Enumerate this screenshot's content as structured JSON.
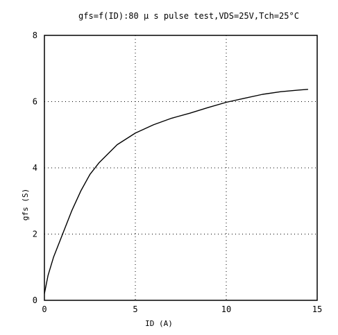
{
  "chart_data": {
    "type": "line",
    "title": "gfs=f(ID):80 μ s pulse test,VDS=25V,Tch=25°C",
    "xlabel": "ID (A)",
    "ylabel": "gfs (S)",
    "xlim": [
      0,
      15
    ],
    "ylim": [
      0,
      8
    ],
    "xticks": [
      "0",
      "5",
      "10",
      "15"
    ],
    "yticks": [
      "0",
      "2",
      "4",
      "6",
      "8"
    ],
    "grid": true,
    "series": [
      {
        "color": "#000000",
        "x": [
          0,
          0.2,
          0.5,
          1.0,
          1.5,
          2.0,
          2.5,
          3.0,
          4.0,
          5.0,
          6.0,
          7.0,
          8.0,
          9.0,
          10.0,
          11.0,
          12.0,
          13.0,
          14.0,
          14.5
        ],
        "y": [
          0.2,
          0.75,
          1.3,
          2.0,
          2.7,
          3.3,
          3.8,
          4.15,
          4.7,
          5.05,
          5.3,
          5.5,
          5.65,
          5.82,
          5.98,
          6.1,
          6.22,
          6.3,
          6.35,
          6.37
        ]
      }
    ]
  }
}
